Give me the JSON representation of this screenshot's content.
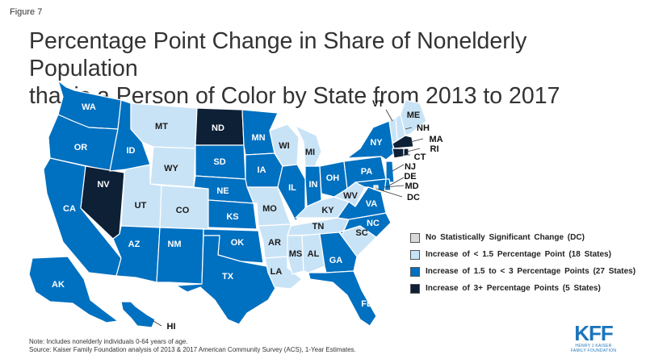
{
  "figure_label": "Figure 7",
  "title_line1": "Percentage Point Change in Share of Nonelderly Population",
  "title_line2": "that is a Person of Color by State from 2013 to 2017",
  "colors": {
    "no_change": "#d9d9d9",
    "light": "#c9e3f6",
    "medium": "#0070c0",
    "dark": "#0d2036",
    "border": "#ffffff",
    "outline": "#1a1a1a"
  },
  "legend": [
    {
      "label": "No Statistically Significant Change (DC)",
      "color": "#d9d9d9"
    },
    {
      "label": "Increase of < 1.5 Percentage Point (18 States)",
      "color": "#c9e3f6"
    },
    {
      "label": "Increase of 1.5 to < 3 Percentage Points (27 States)",
      "color": "#0070c0"
    },
    {
      "label": "Increase of 3+ Percentage Points (5 States)",
      "color": "#0d2036"
    }
  ],
  "states": {
    "WA": "medium",
    "OR": "medium",
    "CA": "medium",
    "NV": "dark",
    "ID": "medium",
    "MT": "light",
    "WY": "light",
    "UT": "light",
    "CO": "light",
    "AZ": "medium",
    "NM": "medium",
    "ND": "dark",
    "SD": "medium",
    "NE": "medium",
    "KS": "medium",
    "OK": "medium",
    "TX": "medium",
    "MN": "medium",
    "IA": "medium",
    "MO": "light",
    "AR": "light",
    "LA": "light",
    "WI": "light",
    "IL": "medium",
    "MS": "light",
    "MI": "light",
    "IN": "medium",
    "KY": "light",
    "TN": "light",
    "AL": "light",
    "OH": "medium",
    "WV": "light",
    "VA": "medium",
    "NC": "medium",
    "SC": "light",
    "GA": "medium",
    "FL": "medium",
    "PA": "medium",
    "NY": "medium",
    "VT": "light",
    "NH": "light",
    "ME": "light",
    "MA": "dark",
    "RI": "dark",
    "CT": "dark",
    "NJ": "medium",
    "DE": "medium",
    "MD": "medium",
    "DC": "no_change",
    "AK": "medium",
    "HI": "medium"
  },
  "note_line1": "Note: Includes nonelderly individuals 0-64 years of age.",
  "note_line2": "Source: Kaiser Family Foundation analysis of 2013 & 2017 American Community Survey (ACS), 1-Year Estimates.",
  "logo": {
    "main": "KFF",
    "sub1": "HENRY J KAISER",
    "sub2": "FAMILY FOUNDATION"
  }
}
